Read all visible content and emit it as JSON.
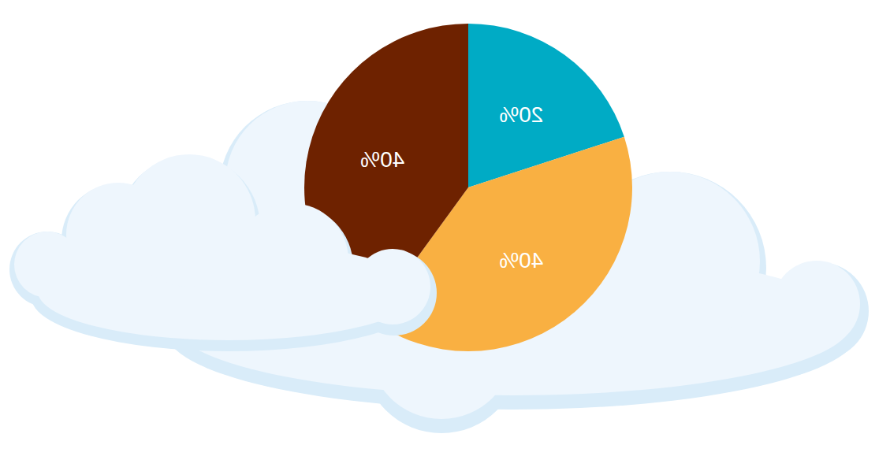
{
  "chart_data": {
    "type": "pie",
    "values": [
      20,
      40,
      40
    ],
    "value_labels": [
      "20%",
      "40%",
      "40%"
    ],
    "colors": [
      "#00abc5",
      "#f9b042",
      "#6e2200"
    ],
    "data_labels": true
  }
}
